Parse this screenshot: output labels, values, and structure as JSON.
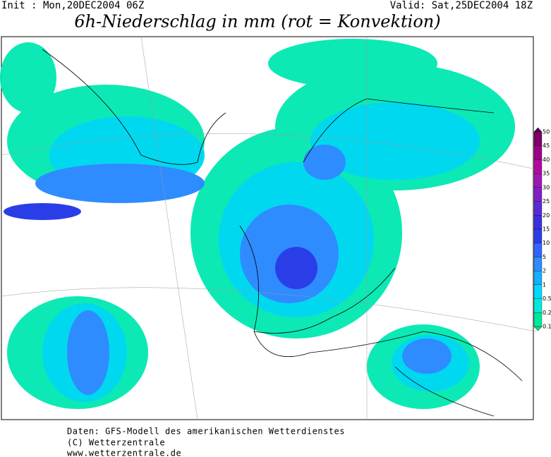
{
  "header": {
    "init": "Init : Mon,20DEC2004 06Z",
    "valid": "Valid: Sat,25DEC2004 18Z",
    "title": "6h-Niederschlag in mm (rot = Konvektion)"
  },
  "colorbar": {
    "labels": [
      "50",
      "45",
      "40",
      "35",
      "30",
      "25",
      "20",
      "15",
      "10",
      "5",
      "2",
      "1",
      "0.5",
      "0.2",
      "0.1"
    ],
    "colors": [
      "#7a0066",
      "#9c0088",
      "#b30a9e",
      "#a018b4",
      "#8020c8",
      "#5a2ad8",
      "#3a30e0",
      "#2a3ee8",
      "#2f66ff",
      "#2f8cff",
      "#12b0ff",
      "#00d8ff",
      "#00ead8",
      "#00e89c"
    ]
  },
  "footer": {
    "line1": "Daten: GFS-Modell des amerikanischen Wetterdienstes",
    "line2": "(C) Wetterzentrale",
    "line3": "www.wetterzentrale.de"
  }
}
